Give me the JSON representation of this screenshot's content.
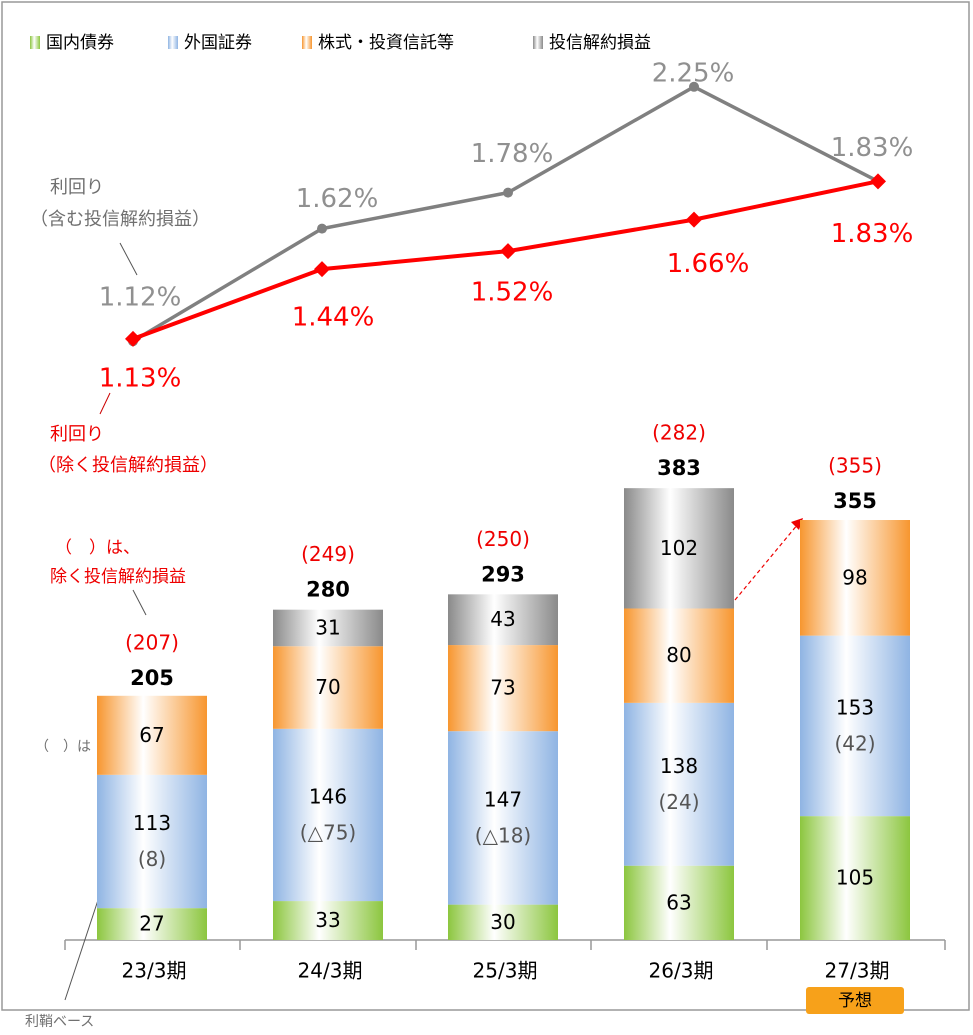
{
  "chart_data": {
    "type": "bar",
    "categories": [
      "23/3期",
      "24/3期",
      "25/3期",
      "26/3期",
      "27/3期"
    ],
    "series": [
      {
        "name": "国内債券",
        "color": "#8cc63f",
        "values": [
          27,
          33,
          30,
          63,
          105
        ]
      },
      {
        "name": "外国証券",
        "color": "#8fb4e3",
        "values": [
          113,
          146,
          147,
          138,
          153
        ]
      },
      {
        "name": "株式・投資信託等",
        "color": "#f7962f",
        "values": [
          67,
          70,
          73,
          80,
          98
        ]
      },
      {
        "name": "投信解約損益",
        "color": "#8a8a8a",
        "values": [
          null,
          31,
          43,
          102,
          null
        ]
      }
    ],
    "margin_basis": {
      "values": [
        8,
        -75,
        -18,
        24,
        42
      ],
      "value_labels": [
        "(8)",
        "(△75)",
        "(△18)",
        "(24)",
        "(42)"
      ]
    },
    "totals": {
      "values": [
        205,
        280,
        293,
        383,
        355
      ]
    },
    "totals_excluding": {
      "values": [
        207,
        249,
        250,
        282,
        355
      ],
      "value_labels": [
        "(207)",
        "(249)",
        "(250)",
        "(282)",
        "(355)"
      ]
    },
    "lines": [
      {
        "type": "line",
        "color": "#808080",
        "axis": "y2",
        "values": [
          1.12,
          1.62,
          1.78,
          2.25,
          1.83
        ],
        "value_labels": [
          "1.12%",
          "1.62%",
          "1.78%",
          "2.25%",
          "1.83%"
        ]
      },
      {
        "type": "line",
        "color": "#ff0000",
        "axis": "y2",
        "values": [
          1.13,
          1.44,
          1.52,
          1.66,
          1.83
        ],
        "value_labels": [
          "1.13%",
          "1.44%",
          "1.52%",
          "1.66%",
          "1.83%"
        ]
      }
    ],
    "annotations": [
      "利回り",
      "（含む投信解約損益）",
      "利回り",
      "（除く投信解約損益）",
      "（　）は、",
      "除く投信解約損益",
      "（　）は",
      "利鞘ベース",
      "予想"
    ],
    "ylim": [
      0,
      790
    ],
    "y2lim": [
      -1.54,
      2.6
    ]
  }
}
